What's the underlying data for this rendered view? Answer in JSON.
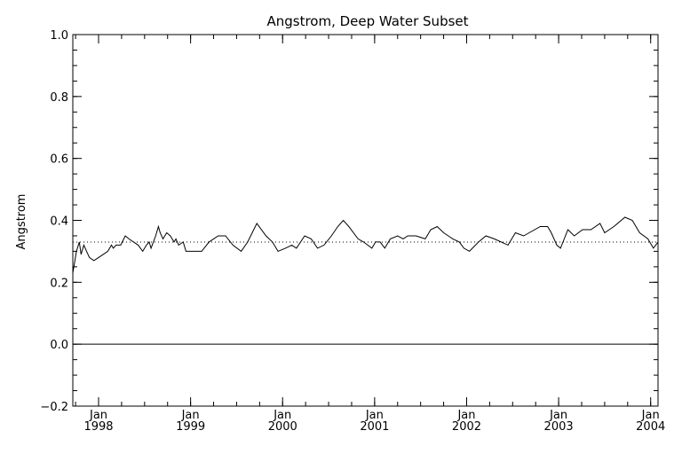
{
  "chart_data": {
    "type": "line",
    "title": "Angstrom, Deep Water Subset",
    "xlabel": "",
    "ylabel": "Angstrom",
    "xlim": [
      1997.72,
      2004.08
    ],
    "ylim": [
      -0.2,
      1.0
    ],
    "yticks": [
      {
        "value": -0.2,
        "label": "−0.2"
      },
      {
        "value": 0.0,
        "label": "0.0"
      },
      {
        "value": 0.2,
        "label": "0.2"
      },
      {
        "value": 0.4,
        "label": "0.4"
      },
      {
        "value": 0.6,
        "label": "0.6"
      },
      {
        "value": 0.8,
        "label": "0.8"
      },
      {
        "value": 1.0,
        "label": "1.0"
      }
    ],
    "xticks": [
      {
        "value": 1998,
        "month": "Jan",
        "year": "1998"
      },
      {
        "value": 1999,
        "month": "Jan",
        "year": "1999"
      },
      {
        "value": 2000,
        "month": "Jan",
        "year": "2000"
      },
      {
        "value": 2001,
        "month": "Jan",
        "year": "2001"
      },
      {
        "value": 2002,
        "month": "Jan",
        "year": "2002"
      },
      {
        "value": 2003,
        "month": "Jan",
        "year": "2003"
      },
      {
        "value": 2004,
        "month": "Jan",
        "year": "2004"
      }
    ],
    "mean_line": 0.33,
    "zero_line": 0.0,
    "series": [
      {
        "x": [
          1997.72,
          1997.76,
          1997.79,
          1997.81,
          1997.84,
          1997.87,
          1997.9,
          1997.95,
          1998.0,
          1998.05,
          1998.1,
          1998.14,
          1998.16,
          1998.19,
          1998.24,
          1998.29,
          1998.33,
          1998.38,
          1998.43,
          1998.48,
          1998.52,
          1998.55,
          1998.57,
          1998.62,
          1998.65,
          1998.67,
          1998.7,
          1998.74,
          1998.78,
          1998.82,
          1998.84,
          1998.87,
          1998.92,
          1998.95,
          1999.05,
          1999.12,
          1999.2,
          1999.3,
          1999.38,
          1999.46,
          1999.55,
          1999.62,
          1999.72,
          1999.82,
          1999.89,
          1999.95,
          2000.03,
          2000.1,
          2000.15,
          2000.24,
          2000.31,
          2000.38,
          2000.45,
          2000.53,
          2000.6,
          2000.66,
          2000.72,
          2000.82,
          2000.88,
          2000.97,
          2001.01,
          2001.06,
          2001.11,
          2001.17,
          2001.25,
          2001.31,
          2001.36,
          2001.45,
          2001.55,
          2001.61,
          2001.68,
          2001.75,
          2001.85,
          2001.92,
          2001.97,
          2002.03,
          2002.13,
          2002.21,
          2002.3,
          2002.45,
          2002.53,
          2002.62,
          2002.68,
          2002.8,
          2002.88,
          2002.92,
          2002.98,
          2003.02,
          2003.1,
          2003.17,
          2003.26,
          2003.35,
          2003.45,
          2003.5,
          2003.6,
          2003.72,
          2003.8,
          2003.88,
          2003.97,
          2004.03,
          2004.08
        ],
        "y": [
          0.23,
          0.3,
          0.33,
          0.29,
          0.32,
          0.3,
          0.28,
          0.27,
          0.28,
          0.29,
          0.3,
          0.32,
          0.31,
          0.32,
          0.32,
          0.35,
          0.34,
          0.33,
          0.32,
          0.3,
          0.32,
          0.33,
          0.31,
          0.35,
          0.38,
          0.36,
          0.34,
          0.36,
          0.35,
          0.33,
          0.34,
          0.32,
          0.33,
          0.3,
          0.3,
          0.3,
          0.33,
          0.35,
          0.35,
          0.32,
          0.3,
          0.33,
          0.39,
          0.35,
          0.33,
          0.3,
          0.31,
          0.32,
          0.31,
          0.35,
          0.34,
          0.31,
          0.32,
          0.35,
          0.38,
          0.4,
          0.38,
          0.34,
          0.33,
          0.31,
          0.33,
          0.33,
          0.31,
          0.34,
          0.35,
          0.34,
          0.35,
          0.35,
          0.34,
          0.37,
          0.38,
          0.36,
          0.34,
          0.33,
          0.31,
          0.3,
          0.33,
          0.35,
          0.34,
          0.32,
          0.36,
          0.35,
          0.36,
          0.38,
          0.38,
          0.36,
          0.32,
          0.31,
          0.37,
          0.35,
          0.37,
          0.37,
          0.39,
          0.36,
          0.38,
          0.41,
          0.4,
          0.36,
          0.34,
          0.31,
          0.33
        ]
      }
    ]
  }
}
